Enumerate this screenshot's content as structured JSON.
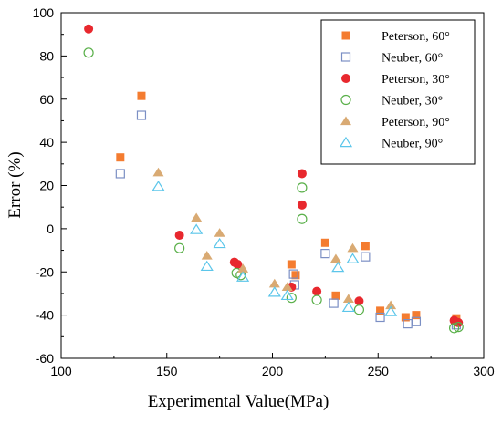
{
  "chart_data": {
    "type": "scatter",
    "title": "",
    "xlabel": "Experimental Value",
    "xlabel_unit": "(MPa)",
    "ylabel": "Error (%)",
    "xlim": [
      100,
      300
    ],
    "ylim": [
      -60,
      100
    ],
    "x_ticks": [
      "100",
      "150",
      "200",
      "250",
      "300"
    ],
    "y_ticks": [
      "-60",
      "-40",
      "-20",
      "0",
      "20",
      "40",
      "60",
      "80",
      "100"
    ],
    "grid": false,
    "legend_position": "top-right",
    "series": [
      {
        "name": "Peterson,  60°",
        "marker": "square-filled",
        "color": "#f47c30",
        "points": [
          [
            128,
            33
          ],
          [
            138,
            61.5
          ],
          [
            209,
            -16.5
          ],
          [
            211,
            -21.5
          ],
          [
            225,
            -6.5
          ],
          [
            230,
            -31
          ],
          [
            244,
            -8
          ],
          [
            251,
            -38
          ],
          [
            263,
            -41
          ],
          [
            268,
            -40
          ],
          [
            287,
            -41.5
          ]
        ]
      },
      {
        "name": "Neuber,  60°",
        "marker": "square-open",
        "color": "#7b8fc4",
        "points": [
          [
            128,
            25.5
          ],
          [
            138,
            52.5
          ],
          [
            210,
            -21
          ],
          [
            210.5,
            -26
          ],
          [
            225,
            -11.5
          ],
          [
            229,
            -34.5
          ],
          [
            244,
            -13
          ],
          [
            251,
            -41
          ],
          [
            264,
            -44
          ],
          [
            268,
            -43
          ],
          [
            287,
            -44.5
          ]
        ]
      },
      {
        "name": "Peterson, 30°",
        "marker": "circle-filled",
        "color": "#e8282e",
        "points": [
          [
            113,
            92.5
          ],
          [
            156,
            -3
          ],
          [
            182,
            -15.5
          ],
          [
            183.5,
            -16.5
          ],
          [
            209,
            -27
          ],
          [
            214,
            25.5
          ],
          [
            214,
            11
          ],
          [
            221,
            -29
          ],
          [
            241,
            -33.5
          ],
          [
            286,
            -42.5
          ],
          [
            288,
            -43.5
          ]
        ]
      },
      {
        "name": "Neuber,   30°",
        "marker": "circle-open",
        "color": "#5ab04a",
        "points": [
          [
            113,
            81.5
          ],
          [
            156,
            -9
          ],
          [
            183,
            -20.5
          ],
          [
            185,
            -21.5
          ],
          [
            209,
            -32
          ],
          [
            214,
            19
          ],
          [
            214,
            4.5
          ],
          [
            221,
            -33
          ],
          [
            241,
            -37.5
          ],
          [
            286,
            -46
          ],
          [
            288,
            -45.5
          ]
        ]
      },
      {
        "name": "Peterson, 90°",
        "marker": "triangle-filled",
        "color": "#d9aa73",
        "points": [
          [
            146,
            26
          ],
          [
            164,
            5
          ],
          [
            169,
            -12.5
          ],
          [
            175,
            -2
          ],
          [
            186,
            -18.5
          ],
          [
            201,
            -25.5
          ],
          [
            207,
            -27
          ],
          [
            230,
            -14
          ],
          [
            236,
            -32.5
          ],
          [
            238,
            -9
          ],
          [
            256,
            -35.5
          ]
        ]
      },
      {
        "name": "Neuber,   90°",
        "marker": "triangle-open",
        "color": "#5cc6ea",
        "points": [
          [
            146,
            19.5
          ],
          [
            164,
            -0.5
          ],
          [
            169,
            -17.5
          ],
          [
            175,
            -7
          ],
          [
            186,
            -22.5
          ],
          [
            201,
            -29.5
          ],
          [
            207,
            -31
          ],
          [
            231,
            -18
          ],
          [
            236,
            -36.5
          ],
          [
            238,
            -14
          ],
          [
            256,
            -38.5
          ]
        ]
      }
    ]
  }
}
